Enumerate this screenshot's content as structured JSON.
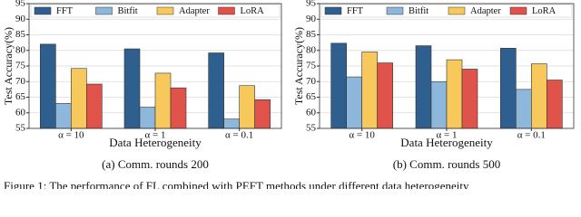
{
  "chart_data": [
    {
      "type": "bar",
      "caption": "(a) Comm. rounds 200",
      "x_label": "Data Heterogeneity",
      "y_label": "Test Accuracy(%)",
      "categories": [
        "α = 10",
        "α = 1",
        "α = 0.1"
      ],
      "series": [
        {
          "name": "FFT",
          "color": "#2e5f8e",
          "values": [
            82,
            80.5,
            79.2
          ]
        },
        {
          "name": "Bitfit",
          "color": "#8db8dc",
          "values": [
            63,
            61.8,
            58
          ]
        },
        {
          "name": "Adapter",
          "color": "#f7c95c",
          "values": [
            74.2,
            72.7,
            68.7
          ]
        },
        {
          "name": "LoRA",
          "color": "#e0534b",
          "values": [
            69.2,
            68,
            64.2
          ]
        }
      ],
      "ylim": [
        55,
        95
      ],
      "yticks": [
        55,
        60,
        65,
        70,
        75,
        80,
        85,
        90,
        95
      ],
      "grid": true,
      "legend": "top"
    },
    {
      "type": "bar",
      "caption": "(b) Comm. rounds 500",
      "x_label": "Data Heterogeneity",
      "y_label": "Test Accuracy(%)",
      "categories": [
        "α = 10",
        "α = 1",
        "α = 0.1"
      ],
      "series": [
        {
          "name": "FFT",
          "color": "#2e5f8e",
          "values": [
            82.3,
            81.5,
            80.7
          ]
        },
        {
          "name": "Bitfit",
          "color": "#8db8dc",
          "values": [
            71.5,
            70,
            67.5
          ]
        },
        {
          "name": "Adapter",
          "color": "#f7c95c",
          "values": [
            79.5,
            77,
            75.7
          ]
        },
        {
          "name": "LoRA",
          "color": "#e0534b",
          "values": [
            76,
            74,
            70.5
          ]
        }
      ],
      "ylim": [
        55,
        95
      ],
      "yticks": [
        55,
        60,
        65,
        70,
        75,
        80,
        85,
        90,
        95
      ],
      "grid": true,
      "legend": "top"
    }
  ],
  "figure_caption": "Figure 1: The performance of FL combined with PEFT methods under different data heterogeneity"
}
